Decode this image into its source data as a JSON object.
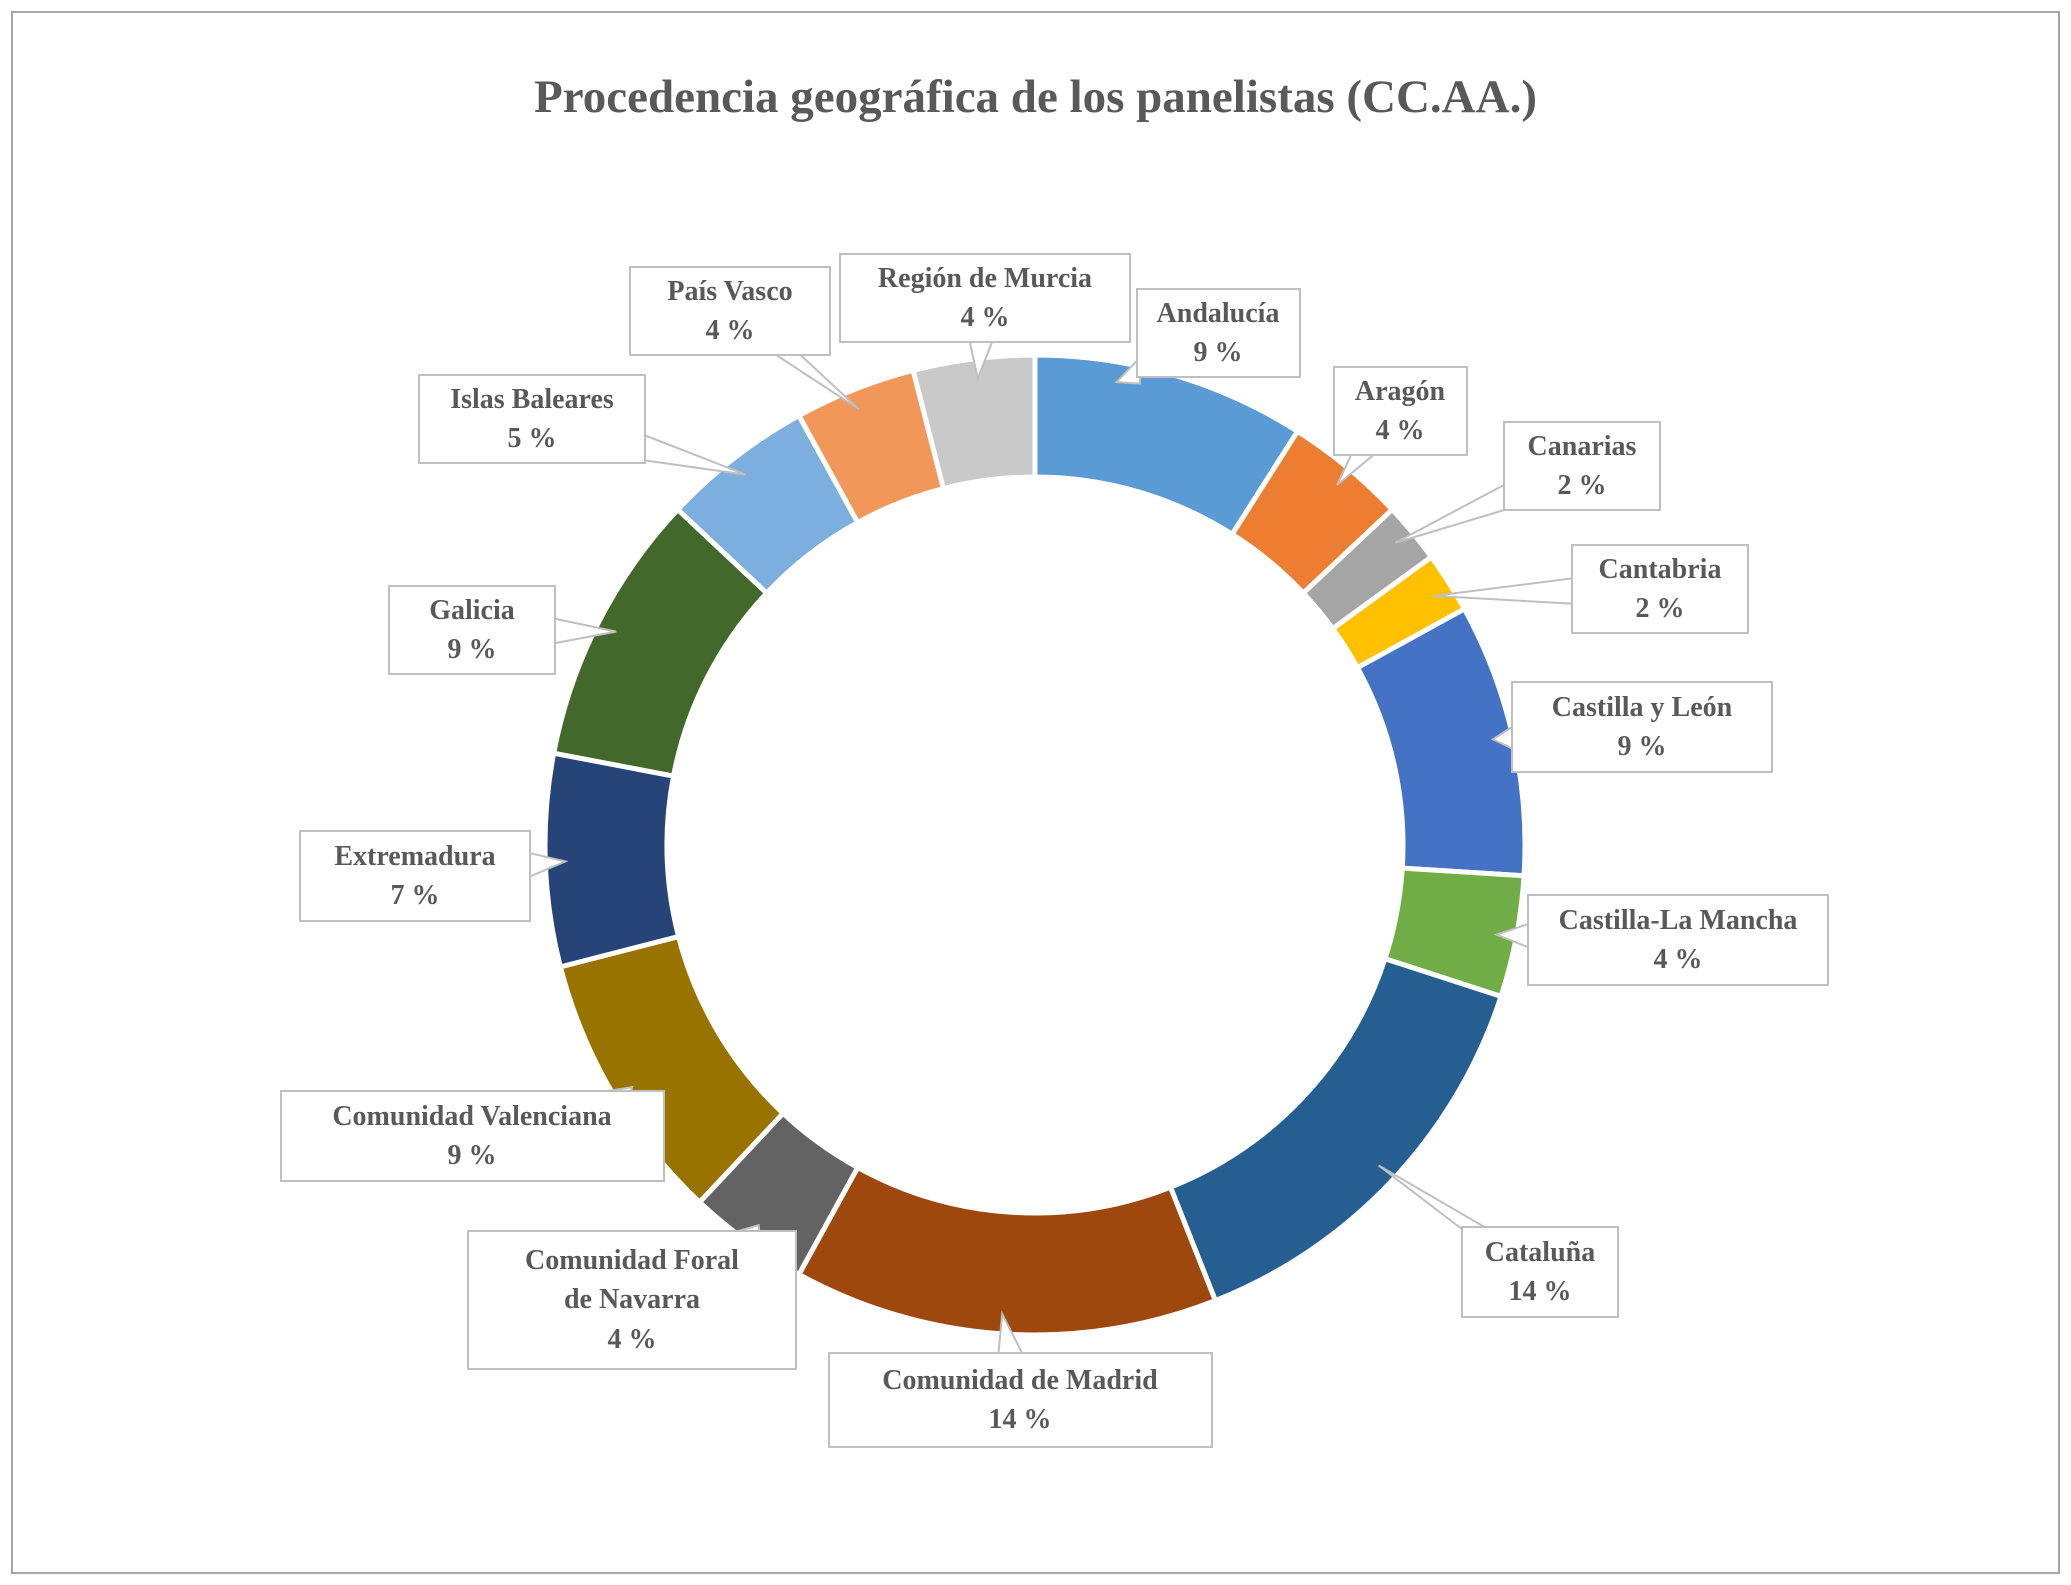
{
  "page": {
    "background": "#ffffff",
    "frame_border_color": "#a6a6a6"
  },
  "chart_data": {
    "type": "pie",
    "subtype": "doughnut",
    "title": "Procedencia geográfica de los panelistas (CC.AA.)",
    "title_color": "#595959",
    "start_angle_deg": 0,
    "direction": "clockwise",
    "hole_ratio": 0.75,
    "legend": "none",
    "labels_style": "callout boxes with category name and percentage",
    "value_suffix": " %",
    "categories": [
      "Andalucía",
      "Aragón",
      "Canarias",
      "Cantabria",
      "Castilla y León",
      "Castilla-La Mancha",
      "Cataluña",
      "Comunidad de Madrid",
      "Comunidad Foral de Navarra",
      "Comunidad Valenciana",
      "Extremadura",
      "Galicia",
      "Islas Baleares",
      "País Vasco",
      "Región de Murcia"
    ],
    "values": [
      9,
      4,
      2,
      2,
      9,
      4,
      14,
      14,
      4,
      9,
      7,
      9,
      5,
      4,
      4
    ],
    "colors": [
      "#5B9BD5",
      "#ED7D31",
      "#A5A5A5",
      "#FFC000",
      "#4472C4",
      "#70AD47",
      "#255E91",
      "#9E480E",
      "#636363",
      "#997300",
      "#264478",
      "#43682B",
      "#7CAFDD",
      "#F1975A",
      "#C9C9C9"
    ],
    "callout_border_color": "#bfbfbf",
    "callout_text_color": "#595959"
  }
}
